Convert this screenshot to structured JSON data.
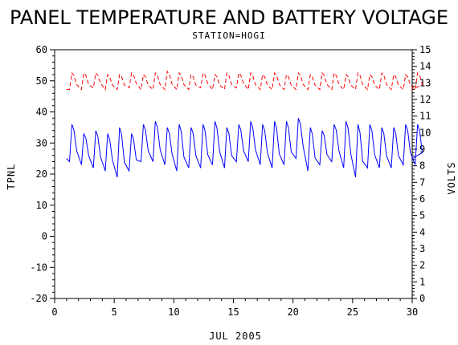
{
  "chart_data": {
    "type": "line",
    "title": "PANEL TEMPERATURE AND BATTERY VOLTAGE",
    "subtitle": "STATION=HOGI",
    "xlabel": "JUL 2005",
    "ylabel_left": "TPNL",
    "ylabel_right": "VOLTS",
    "xlim": [
      0,
      30
    ],
    "ylim_left": [
      -20,
      60
    ],
    "ylim_right": [
      0,
      15
    ],
    "x_ticks": [
      0,
      5,
      10,
      15,
      20,
      25,
      30
    ],
    "y_ticks_left": [
      -20,
      -10,
      0,
      10,
      20,
      30,
      40,
      50,
      60
    ],
    "y_ticks_right": [
      0,
      1,
      2,
      3,
      4,
      5,
      6,
      7,
      8,
      9,
      10,
      11,
      12,
      13,
      14,
      15
    ],
    "series": [
      {
        "axis": "left",
        "color": "#0000ff",
        "style": "solid",
        "daily_low": [
          24,
          23,
          22,
          21,
          19,
          21,
          24,
          24,
          23,
          21,
          22,
          22,
          23,
          22,
          24,
          24,
          23,
          22,
          23,
          25,
          21,
          23,
          24,
          22,
          19,
          22,
          22,
          22,
          23,
          23
        ],
        "daily_high": [
          36,
          33,
          34,
          33,
          35,
          33,
          36,
          37,
          35,
          36,
          35,
          36,
          37,
          35,
          36,
          37,
          36,
          37,
          37,
          38,
          35,
          34,
          36,
          37,
          36,
          36,
          35,
          35,
          36,
          36
        ],
        "start": 25,
        "end": 25
      },
      {
        "axis": "right",
        "color": "#ff0000",
        "style": "dashed",
        "daily_low": [
          12.6,
          12.6,
          12.7,
          12.6,
          12.6,
          12.7,
          12.6,
          12.6,
          12.6,
          12.6,
          12.6,
          12.7,
          12.6,
          12.6,
          12.7,
          12.6,
          12.6,
          12.6,
          12.6,
          12.6,
          12.6,
          12.6,
          12.6,
          12.6,
          12.6,
          12.6,
          12.6,
          12.6,
          12.6,
          12.6
        ],
        "daily_high": [
          13.6,
          13.6,
          13.6,
          13.5,
          13.5,
          13.6,
          13.5,
          13.6,
          13.7,
          13.6,
          13.5,
          13.6,
          13.5,
          13.6,
          13.6,
          13.6,
          13.5,
          13.6,
          13.5,
          13.6,
          13.5,
          13.6,
          13.6,
          13.5,
          13.6,
          13.5,
          13.6,
          13.5,
          13.5,
          13.6
        ],
        "start": 12.6,
        "end": 12.6
      }
    ]
  }
}
